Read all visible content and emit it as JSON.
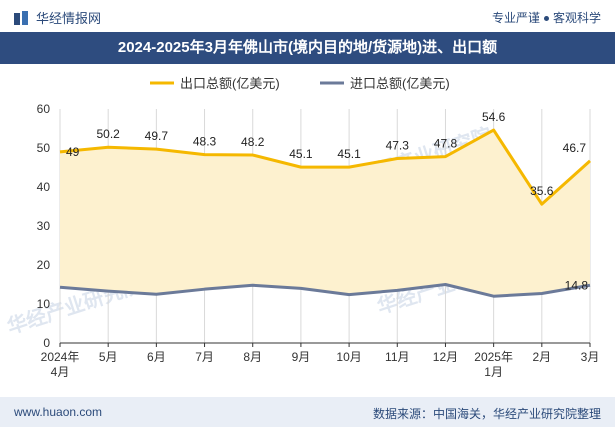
{
  "header": {
    "brand": "华经情报网",
    "slogan_left": "专业严谨",
    "slogan_right": "客观科学",
    "title": "2024-2025年3月年佛山市(境内目的地/货源地)进、出口额"
  },
  "footer": {
    "url": "www.huaon.com",
    "source": "数据来源：中国海关，华经产业研究院整理"
  },
  "watermark": "华经产业研究院",
  "colors": {
    "export": "#f5b800",
    "import": "#6b7a99",
    "fill": "#fdf1cf",
    "title_bg": "#2e4c7f"
  },
  "chart_data": {
    "type": "line",
    "categories": [
      [
        "2024年",
        "4月"
      ],
      [
        "5月"
      ],
      [
        "6月"
      ],
      [
        "7月"
      ],
      [
        "8月"
      ],
      [
        "9月"
      ],
      [
        "10月"
      ],
      [
        "11月"
      ],
      [
        "12月"
      ],
      [
        "2025年",
        "1月"
      ],
      [
        "2月"
      ],
      [
        "3月"
      ]
    ],
    "series": [
      {
        "name": "出口总额(亿美元)",
        "values": [
          49,
          50.2,
          49.7,
          48.3,
          48.2,
          45.1,
          45.1,
          47.3,
          47.8,
          54.6,
          35.6,
          46.7
        ],
        "labels": [
          "49",
          "50.2",
          "49.7",
          "48.3",
          "48.2",
          "45.1",
          "45.1",
          "47.3",
          "47.8",
          "54.6",
          "35.6",
          "46.7"
        ]
      },
      {
        "name": "进口总额(亿美元)",
        "values": [
          14.3,
          13.3,
          12.5,
          13.8,
          14.8,
          14.0,
          12.4,
          13.5,
          15.0,
          12.0,
          12.7,
          14.8
        ],
        "labels": [
          "",
          "",
          "",
          "",
          "",
          "",
          "",
          "",
          "",
          "",
          "",
          "14.8"
        ]
      }
    ],
    "ylim": [
      0,
      60
    ],
    "yticks": [
      "0",
      "10",
      "20",
      "30",
      "40",
      "50",
      "60"
    ],
    "legend": "top-center",
    "grid": "vertical"
  }
}
